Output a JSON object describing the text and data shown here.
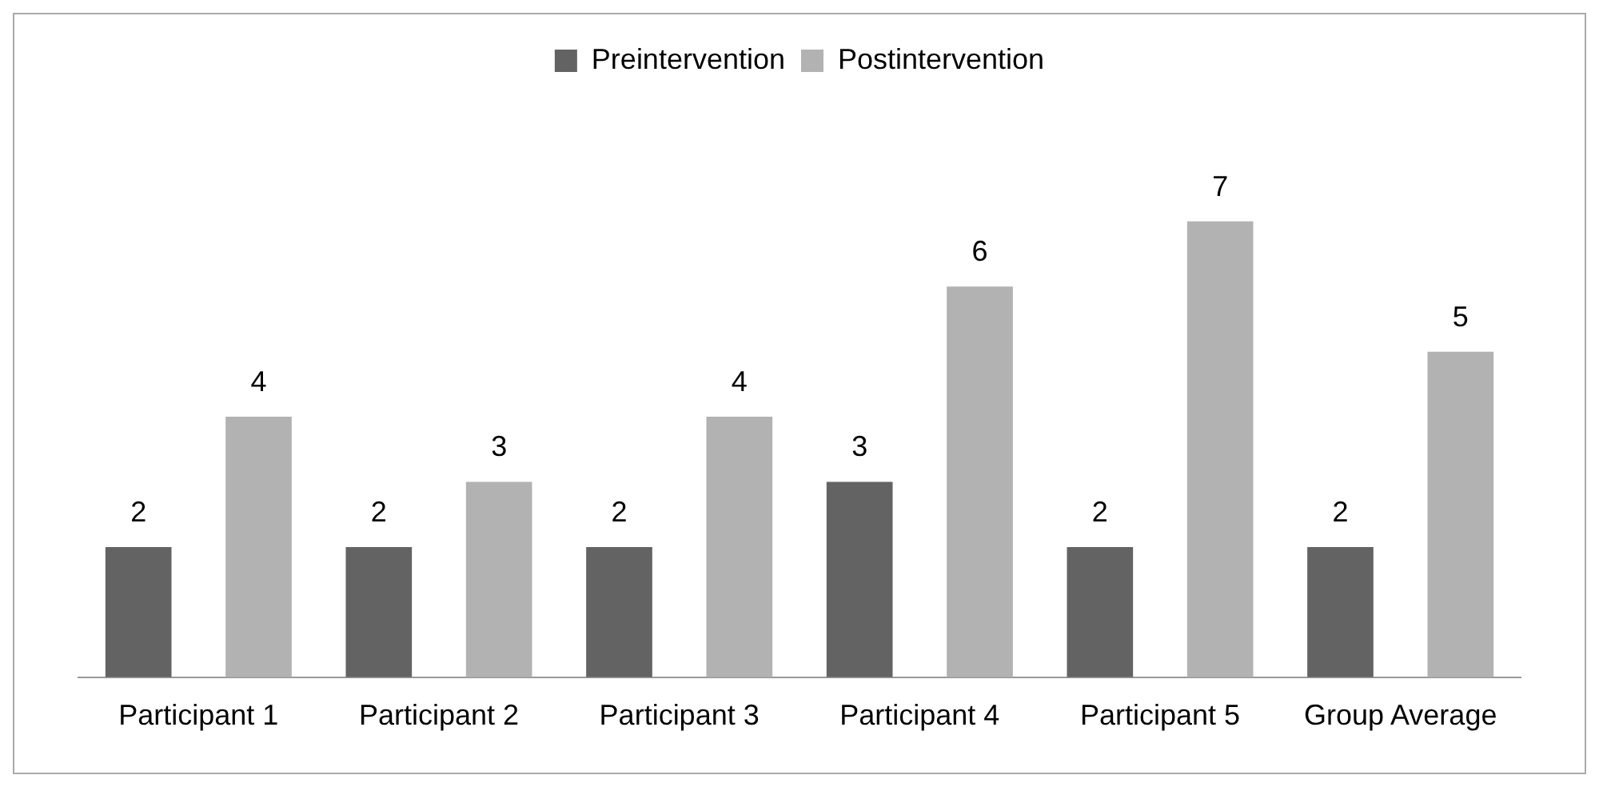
{
  "chart_data": {
    "type": "bar",
    "categories": [
      "Participant 1",
      "Participant 2",
      "Participant 3",
      "Participant 4",
      "Participant 5",
      "Group Average"
    ],
    "series": [
      {
        "name": "Preintervention",
        "color": "#636363",
        "values": [
          2,
          2,
          2,
          3,
          2,
          2
        ]
      },
      {
        "name": "Postintervention",
        "color": "#b2b2b2",
        "values": [
          4,
          3,
          4,
          6,
          7,
          5
        ]
      }
    ],
    "data_labels": true,
    "legend": "top",
    "grid": false
  }
}
